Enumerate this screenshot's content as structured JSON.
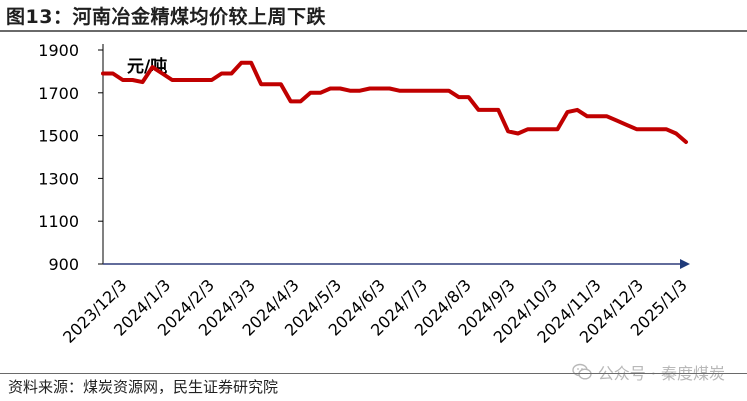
{
  "title": "图13：河南冶金精煤均价较上周下跌",
  "source": "资料来源：煤炭资源网，民生证券研究院",
  "watermark": "公众号 · 秦度煤炭",
  "chart_data": {
    "type": "line",
    "unit": "元/吨",
    "ylim": [
      900,
      1900
    ],
    "yticks": [
      900,
      1100,
      1300,
      1500,
      1700,
      1900
    ],
    "xticks": [
      "2023/12/3",
      "2024/1/3",
      "2024/2/3",
      "2024/3/3",
      "2024/4/3",
      "2024/5/3",
      "2024/6/3",
      "2024/7/3",
      "2024/8/3",
      "2024/9/3",
      "2024/10/3",
      "2024/11/3",
      "2024/12/3",
      "2025/1/3"
    ],
    "grid": false,
    "legend": "none",
    "color": "#c00000",
    "series": [
      {
        "x": [
          "2023-11-24",
          "2023-12-01",
          "2023-12-08",
          "2023-12-15",
          "2023-12-22",
          "2023-12-29",
          "2024-01-05",
          "2024-01-12",
          "2024-01-19",
          "2024-01-26",
          "2024-02-02",
          "2024-02-09",
          "2024-02-16",
          "2024-02-23",
          "2024-03-01",
          "2024-03-08",
          "2024-03-15",
          "2024-03-22",
          "2024-03-29",
          "2024-04-05",
          "2024-04-12",
          "2024-04-19",
          "2024-04-26",
          "2024-05-03",
          "2024-05-10",
          "2024-05-17",
          "2024-05-24",
          "2024-05-31",
          "2024-06-07",
          "2024-06-14",
          "2024-06-21",
          "2024-06-28",
          "2024-07-05",
          "2024-07-12",
          "2024-07-19",
          "2024-07-26",
          "2024-08-02",
          "2024-08-09",
          "2024-08-16",
          "2024-08-23",
          "2024-08-30",
          "2024-09-06",
          "2024-09-13",
          "2024-09-20",
          "2024-09-27",
          "2024-10-04",
          "2024-10-11",
          "2024-10-18",
          "2024-10-25",
          "2024-11-01",
          "2024-11-08",
          "2024-11-15",
          "2024-11-22",
          "2024-11-29",
          "2024-12-06",
          "2024-12-13",
          "2024-12-20",
          "2024-12-27",
          "2025-01-03",
          "2025-01-10"
        ],
        "values": [
          1790,
          1790,
          1760,
          1760,
          1750,
          1820,
          1790,
          1760,
          1760,
          1760,
          1760,
          1760,
          1790,
          1790,
          1840,
          1840,
          1740,
          1740,
          1740,
          1660,
          1660,
          1700,
          1700,
          1720,
          1720,
          1710,
          1710,
          1720,
          1720,
          1720,
          1710,
          1710,
          1710,
          1710,
          1710,
          1710,
          1680,
          1680,
          1620,
          1620,
          1620,
          1520,
          1510,
          1530,
          1530,
          1530,
          1530,
          1610,
          1620,
          1590,
          1590,
          1590,
          1570,
          1550,
          1530,
          1530,
          1530,
          1530,
          1510,
          1470
        ]
      }
    ]
  }
}
